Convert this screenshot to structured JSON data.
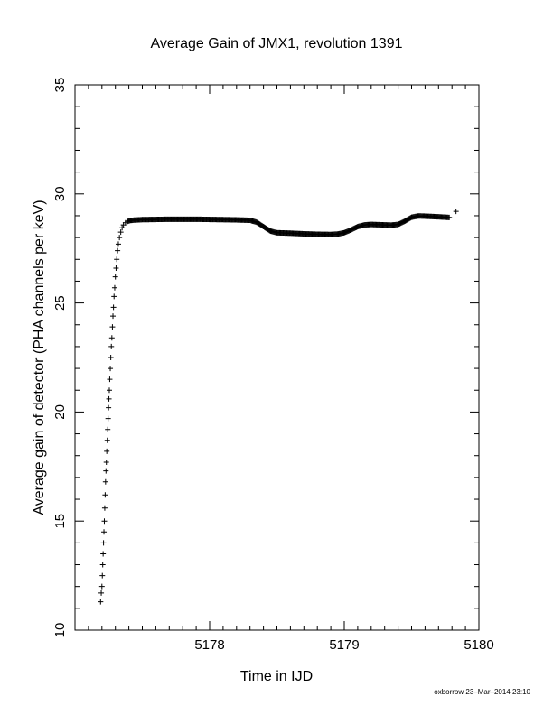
{
  "chart_data": {
    "type": "scatter",
    "title": "Average Gain of JMX1, revolution 1391",
    "xlabel": "Time in IJD",
    "ylabel": "Average gain of detector (PHA channels per keV)",
    "xlim": [
      5177.0,
      5180.0
    ],
    "ylim": [
      10,
      35
    ],
    "x_ticks": [
      5178,
      5179,
      5180
    ],
    "y_ticks": [
      10,
      15,
      20,
      25,
      30,
      35
    ],
    "grid": false,
    "marker": "plus",
    "color": "#000000",
    "series": [
      {
        "points": [
          [
            5177.19,
            11.3
          ],
          [
            5177.195,
            11.7
          ],
          [
            5177.2,
            12.0
          ],
          [
            5177.203,
            12.5
          ],
          [
            5177.206,
            13.0
          ],
          [
            5177.209,
            13.5
          ],
          [
            5177.212,
            14.0
          ],
          [
            5177.215,
            14.5
          ],
          [
            5177.218,
            15.0
          ],
          [
            5177.221,
            15.6
          ],
          [
            5177.224,
            16.2
          ],
          [
            5177.227,
            16.8
          ],
          [
            5177.23,
            17.3
          ],
          [
            5177.233,
            17.7
          ],
          [
            5177.236,
            18.2
          ],
          [
            5177.24,
            18.7
          ],
          [
            5177.243,
            19.2
          ],
          [
            5177.246,
            19.7
          ],
          [
            5177.249,
            20.2
          ],
          [
            5177.252,
            20.6
          ],
          [
            5177.255,
            21.0
          ],
          [
            5177.258,
            21.5
          ],
          [
            5177.262,
            22.0
          ],
          [
            5177.266,
            22.5
          ],
          [
            5177.27,
            23.0
          ],
          [
            5177.274,
            23.4
          ],
          [
            5177.278,
            23.9
          ],
          [
            5177.282,
            24.4
          ],
          [
            5177.286,
            24.8
          ],
          [
            5177.29,
            25.3
          ],
          [
            5177.295,
            25.7
          ],
          [
            5177.3,
            26.2
          ],
          [
            5177.305,
            26.6
          ],
          [
            5177.31,
            27.0
          ],
          [
            5177.316,
            27.4
          ],
          [
            5177.322,
            27.7
          ],
          [
            5177.33,
            28.0
          ],
          [
            5177.34,
            28.25
          ],
          [
            5177.35,
            28.45
          ],
          [
            5177.36,
            28.58
          ],
          [
            5177.375,
            28.68
          ],
          [
            5177.39,
            28.74
          ],
          [
            5177.41,
            28.78
          ],
          [
            5177.44,
            28.8
          ],
          [
            5177.5,
            28.82
          ],
          [
            5177.6,
            28.83
          ],
          [
            5177.7,
            28.84
          ],
          [
            5177.8,
            28.84
          ],
          [
            5177.9,
            28.84
          ],
          [
            5178.0,
            28.83
          ],
          [
            5178.1,
            28.82
          ],
          [
            5178.2,
            28.81
          ],
          [
            5178.3,
            28.79
          ],
          [
            5178.35,
            28.7
          ],
          [
            5178.4,
            28.5
          ],
          [
            5178.45,
            28.3
          ],
          [
            5178.5,
            28.22
          ],
          [
            5178.6,
            28.2
          ],
          [
            5178.7,
            28.17
          ],
          [
            5178.8,
            28.15
          ],
          [
            5178.9,
            28.14
          ],
          [
            5178.95,
            28.16
          ],
          [
            5179.0,
            28.22
          ],
          [
            5179.05,
            28.35
          ],
          [
            5179.1,
            28.5
          ],
          [
            5179.15,
            28.58
          ],
          [
            5179.2,
            28.6
          ],
          [
            5179.3,
            28.58
          ],
          [
            5179.35,
            28.57
          ],
          [
            5179.4,
            28.6
          ],
          [
            5179.45,
            28.75
          ],
          [
            5179.5,
            28.93
          ],
          [
            5179.55,
            28.99
          ],
          [
            5179.6,
            28.98
          ],
          [
            5179.7,
            28.95
          ],
          [
            5179.78,
            28.92
          ],
          [
            5179.83,
            29.2
          ]
        ]
      }
    ]
  },
  "footer": {
    "stamp": "oxborrow 23–Mar–2014 23:10"
  }
}
